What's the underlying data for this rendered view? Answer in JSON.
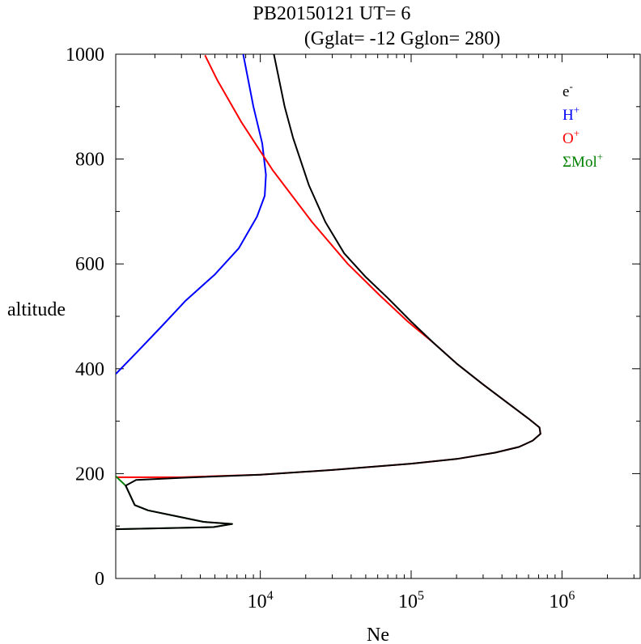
{
  "title": {
    "line1": "PB20150121   UT=  6",
    "line2": "(Gglat= -12   Gglon=  280)"
  },
  "chart_data": {
    "type": "line",
    "xlabel": "Ne",
    "ylabel": "altitude",
    "x_scale": "log",
    "xlim": [
      1100,
      3300000
    ],
    "ylim": [
      0,
      1000
    ],
    "x_tick_labels": [
      {
        "value": 10000,
        "base": "10",
        "exp": "4"
      },
      {
        "value": 100000,
        "base": "10",
        "exp": "5"
      },
      {
        "value": 1000000,
        "base": "10",
        "exp": "6"
      }
    ],
    "y_ticks": [
      0,
      200,
      400,
      600,
      800,
      1000
    ],
    "y_tick_labels": [
      "0",
      "200",
      "400",
      "600",
      "800",
      "1000"
    ],
    "grid": false,
    "legend_position": "top-right",
    "series": [
      {
        "key": "electron",
        "legend_base": "e",
        "legend_sup": "-",
        "color": "#000000",
        "points": [
          [
            1100,
            94
          ],
          [
            4900,
            98
          ],
          [
            6500,
            104
          ],
          [
            4200,
            108
          ],
          [
            1800,
            130
          ],
          [
            1470,
            140
          ],
          [
            1280,
            177
          ],
          [
            1500,
            188
          ],
          [
            3000,
            192
          ],
          [
            10000,
            198
          ],
          [
            30000,
            207
          ],
          [
            100000,
            219
          ],
          [
            200000,
            228
          ],
          [
            360000,
            240
          ],
          [
            520000,
            251
          ],
          [
            640000,
            263
          ],
          [
            720000,
            276
          ],
          [
            710000,
            288
          ],
          [
            600000,
            305
          ],
          [
            440000,
            334
          ],
          [
            300000,
            370
          ],
          [
            200000,
            410
          ],
          [
            140000,
            450
          ],
          [
            100000,
            490
          ],
          [
            70000,
            535
          ],
          [
            50000,
            575
          ],
          [
            36000,
            620
          ],
          [
            27000,
            680
          ],
          [
            21000,
            750
          ],
          [
            16500,
            840
          ],
          [
            14500,
            900
          ],
          [
            12300,
            1000
          ]
        ]
      },
      {
        "key": "hydrogen",
        "legend_base": "H",
        "legend_sup": "+",
        "color": "#0000ff",
        "points": [
          [
            1100,
            390
          ],
          [
            1500,
            430
          ],
          [
            2200,
            480
          ],
          [
            3200,
            530
          ],
          [
            5000,
            580
          ],
          [
            7200,
            630
          ],
          [
            9500,
            690
          ],
          [
            10700,
            730
          ],
          [
            10900,
            770
          ],
          [
            10300,
            830
          ],
          [
            9000,
            900
          ],
          [
            7700,
            1000
          ]
        ]
      },
      {
        "key": "oxygen",
        "legend_base": "O",
        "legend_sup": "+",
        "color": "#ff0000",
        "points": [
          [
            1100,
            193
          ],
          [
            3000,
            193
          ],
          [
            10000,
            198
          ],
          [
            30000,
            207
          ],
          [
            100000,
            219
          ],
          [
            200000,
            228
          ],
          [
            360000,
            240
          ],
          [
            520000,
            251
          ],
          [
            640000,
            263
          ],
          [
            720000,
            276
          ],
          [
            710000,
            288
          ],
          [
            600000,
            305
          ],
          [
            440000,
            334
          ],
          [
            300000,
            370
          ],
          [
            200000,
            410
          ],
          [
            140000,
            450
          ],
          [
            95000,
            490
          ],
          [
            62000,
            540
          ],
          [
            38000,
            600
          ],
          [
            22000,
            680
          ],
          [
            12000,
            780
          ],
          [
            7500,
            870
          ],
          [
            5200,
            950
          ],
          [
            4300,
            998
          ]
        ]
      },
      {
        "key": "molecular",
        "legend_base": "ΣMol",
        "legend_sup": "+",
        "color": "#008000",
        "points": [
          [
            1100,
            94
          ],
          [
            4900,
            98
          ],
          [
            6500,
            104
          ],
          [
            4200,
            108
          ],
          [
            1800,
            130
          ],
          [
            1470,
            140
          ],
          [
            1280,
            177
          ],
          [
            1100,
            195
          ]
        ]
      }
    ]
  }
}
